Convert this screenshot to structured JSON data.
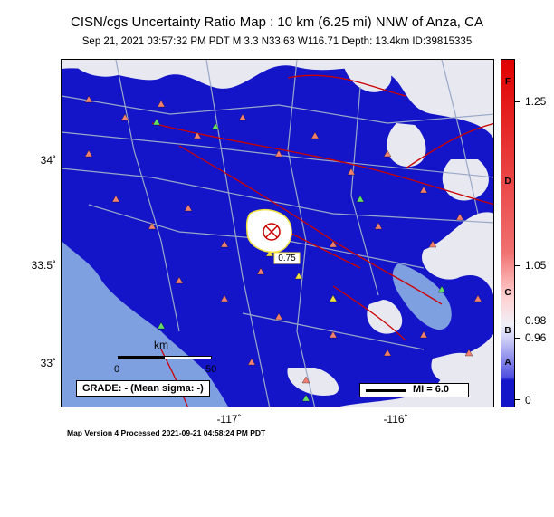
{
  "header": {
    "title": "CISN/cgs Uncertainty Ratio Map : 10 km (6.25 mi) NNW of Anza, CA",
    "subtitle": "Sep 21, 2021 03:57:32 PM PDT   M 3.3   N33.63 W116.71   Depth: 13.4km   ID:39815335"
  },
  "map": {
    "lat_labels": [
      "34˚",
      "33.5˚",
      "33˚"
    ],
    "lon_labels": [
      "-117˚",
      "-116˚"
    ],
    "contour_label": "0.75",
    "grade_label": "GRADE: - (Mean sigma: -)",
    "mi_label": "MI = 6.0",
    "scalebar": {
      "unit": "km",
      "ticks": [
        "0",
        "50"
      ]
    },
    "colors": {
      "ocean": "#7ea0e0",
      "low_ratio": "#1414c8",
      "high_ratio": "#e8e8f0",
      "fault": "#cc0000",
      "road": "#9aa8c8",
      "station_triangle": "#f08070"
    }
  },
  "colorscale": {
    "letters": [
      "F",
      "D",
      "C",
      "B",
      "A"
    ],
    "values": [
      "1.25",
      "1.05",
      "0.98",
      "0.96",
      "0"
    ]
  },
  "footer": {
    "text": "Map Version 4 Processed 2021-09-21 04:58:24 PM PDT"
  }
}
